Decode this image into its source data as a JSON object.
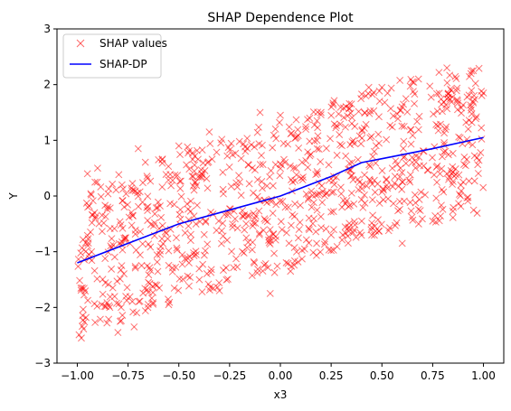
{
  "chart_data": {
    "type": "scatter",
    "title": "SHAP Dependence Plot",
    "xlabel": "x3",
    "ylabel": "Y",
    "xlim": [
      -1.1,
      1.1
    ],
    "ylim": [
      -3,
      3
    ],
    "xticks": [
      -1.0,
      -0.75,
      -0.5,
      -0.25,
      0.0,
      0.25,
      0.5,
      0.75,
      1.0
    ],
    "xtick_labels": [
      "−1.00",
      "−0.75",
      "−0.50",
      "−0.25",
      "0.00",
      "0.25",
      "0.50",
      "0.75",
      "1.00"
    ],
    "yticks": [
      -3,
      -2,
      -1,
      0,
      1,
      2,
      3
    ],
    "ytick_labels": [
      "−3",
      "−2",
      "−1",
      "0",
      "1",
      "2",
      "3"
    ],
    "grid": false,
    "legend_position": "upper-left",
    "series": [
      {
        "name": "SHAP values",
        "kind": "scatter",
        "marker": "x",
        "color": "#ff0000",
        "opacity": 0.55,
        "point_count": 1000,
        "distribution": "uniform band around the SHAP-DP curve",
        "band_half_width": 1.35,
        "points": [
          [
            -0.98,
            -2.55
          ],
          [
            -0.95,
            0.4
          ],
          [
            -0.93,
            -1.0
          ],
          [
            -0.9,
            0.5
          ],
          [
            -0.88,
            -1.95
          ],
          [
            -0.85,
            -0.2
          ],
          [
            -0.8,
            -2.45
          ],
          [
            -0.78,
            0.2
          ],
          [
            -0.72,
            -2.35
          ],
          [
            -0.7,
            0.85
          ],
          [
            -0.65,
            -1.55
          ],
          [
            -0.6,
            0.65
          ],
          [
            -0.55,
            -1.95
          ],
          [
            -0.5,
            0.9
          ],
          [
            -0.45,
            -1.2
          ],
          [
            -0.35,
            1.15
          ],
          [
            -0.3,
            -1.7
          ],
          [
            -0.2,
            0.25
          ],
          [
            -0.1,
            1.5
          ],
          [
            -0.05,
            -1.75
          ],
          [
            0.0,
            1.45
          ],
          [
            0.05,
            -1.35
          ],
          [
            0.15,
            0.75
          ],
          [
            0.2,
            1.5
          ],
          [
            0.25,
            -0.7
          ],
          [
            0.35,
            1.65
          ],
          [
            0.45,
            -0.7
          ],
          [
            0.5,
            1.95
          ],
          [
            0.6,
            -0.85
          ],
          [
            0.65,
            2.05
          ],
          [
            0.75,
            -0.45
          ],
          [
            0.82,
            2.3
          ],
          [
            0.9,
            0.25
          ],
          [
            0.95,
            2.25
          ],
          [
            1.0,
            1.85
          ]
        ]
      },
      {
        "name": "SHAP-DP",
        "kind": "line",
        "color": "#0000ff",
        "x": [
          -1.0,
          -0.75,
          -0.5,
          -0.25,
          0.0,
          0.25,
          0.4,
          0.5,
          0.75,
          1.0
        ],
        "y": [
          -1.2,
          -0.85,
          -0.5,
          -0.25,
          0.0,
          0.35,
          0.6,
          0.67,
          0.85,
          1.05
        ]
      }
    ]
  }
}
